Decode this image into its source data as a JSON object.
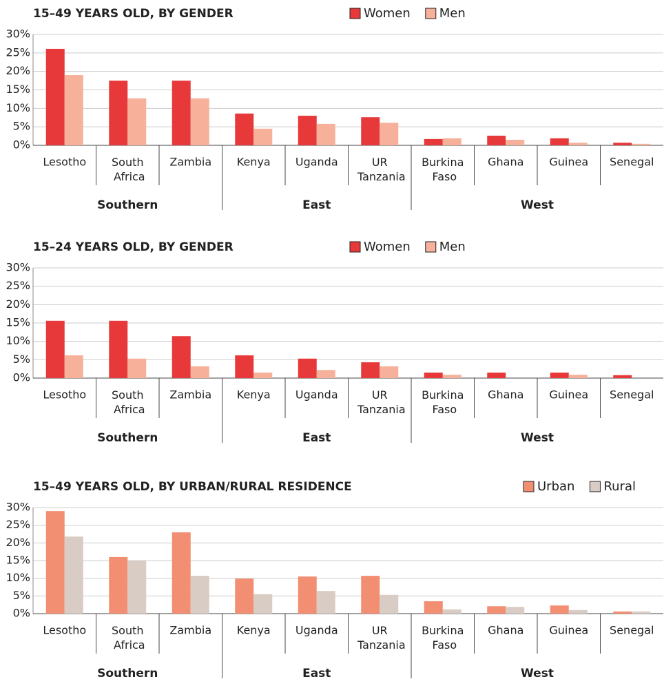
{
  "chart_data": [
    {
      "type": "bar",
      "title": "15–49 YEARS OLD, BY GENDER",
      "groups": [
        {
          "name": "Southern",
          "categories": [
            "Lesotho",
            "South Africa",
            "Zambia"
          ]
        },
        {
          "name": "East",
          "categories": [
            "Kenya",
            "Uganda",
            "UR Tanzania"
          ]
        },
        {
          "name": "West",
          "categories": [
            "Burkina Faso",
            "Ghana",
            "Guinea",
            "Senegal"
          ]
        }
      ],
      "series": [
        {
          "name": "Women",
          "color": "#e8393a",
          "values": [
            26.1,
            17.5,
            17.5,
            8.6,
            8.0,
            7.6,
            1.7,
            2.6,
            1.9,
            0.7
          ]
        },
        {
          "name": "Men",
          "color": "#f7b09a",
          "values": [
            19.0,
            12.7,
            12.7,
            4.5,
            5.8,
            6.1,
            1.9,
            1.5,
            0.7,
            0.4
          ]
        }
      ],
      "ylim": [
        0,
        30
      ],
      "yticks": [
        {
          "value": 0,
          "label": "0%"
        },
        {
          "value": 5,
          "label": "5%"
        },
        {
          "value": 10,
          "label": "10%"
        },
        {
          "value": 15,
          "label": "15%"
        },
        {
          "value": 20,
          "label": "20%"
        },
        {
          "value": 25,
          "label": "25%"
        },
        {
          "value": 30,
          "label": "30%"
        }
      ],
      "grid": true
    },
    {
      "type": "bar",
      "title": "15–24 YEARS OLD, BY GENDER",
      "groups": [
        {
          "name": "Southern",
          "categories": [
            "Lesotho",
            "South Africa",
            "Zambia"
          ]
        },
        {
          "name": "East",
          "categories": [
            "Kenya",
            "Uganda",
            "UR Tanzania"
          ]
        },
        {
          "name": "West",
          "categories": [
            "Burkina Faso",
            "Ghana",
            "Guinea",
            "Senegal"
          ]
        }
      ],
      "series": [
        {
          "name": "Women",
          "color": "#e8393a",
          "values": [
            15.6,
            15.6,
            11.4,
            6.2,
            5.3,
            4.3,
            1.5,
            1.5,
            1.5,
            0.8
          ]
        },
        {
          "name": "Men",
          "color": "#f7b09a",
          "values": [
            6.2,
            5.3,
            3.2,
            1.5,
            2.2,
            3.2,
            0.9,
            0,
            0.9,
            0
          ]
        }
      ],
      "ylim": [
        0,
        30
      ],
      "yticks": [
        {
          "value": 0,
          "label": "0%"
        },
        {
          "value": 5,
          "label": "5%"
        },
        {
          "value": 10,
          "label": "10%"
        },
        {
          "value": 15,
          "label": "15%"
        },
        {
          "value": 20,
          "label": "20%"
        },
        {
          "value": 25,
          "label": "25%"
        },
        {
          "value": 30,
          "label": "30%"
        }
      ],
      "grid": true
    },
    {
      "type": "bar",
      "title": "15–49 YEARS OLD, BY URBAN/RURAL RESIDENCE",
      "groups": [
        {
          "name": "Southern",
          "categories": [
            "Lesotho",
            "South Africa",
            "Zambia"
          ]
        },
        {
          "name": "East",
          "categories": [
            "Kenya",
            "Uganda",
            "UR Tanzania"
          ]
        },
        {
          "name": "West",
          "categories": [
            "Burkina Faso",
            "Ghana",
            "Guinea",
            "Senegal"
          ]
        }
      ],
      "series": [
        {
          "name": "Urban",
          "color": "#f28f73",
          "values": [
            29.0,
            16.0,
            23.0,
            9.9,
            10.5,
            10.7,
            3.5,
            2.1,
            2.3,
            0.6
          ]
        },
        {
          "name": "Rural",
          "color": "#d9ccc4",
          "values": [
            21.8,
            15.0,
            10.7,
            5.5,
            6.4,
            5.3,
            1.2,
            1.9,
            1.0,
            0.6
          ]
        }
      ],
      "ylim": [
        0,
        30
      ],
      "yticks": [
        {
          "value": 0,
          "label": "0%"
        },
        {
          "value": 5,
          "label": "5%"
        },
        {
          "value": 10,
          "label": "10%"
        },
        {
          "value": 15,
          "label": "15%"
        },
        {
          "value": 20,
          "label": "20%"
        },
        {
          "value": 25,
          "label": "25%"
        },
        {
          "value": 30,
          "label": "30%"
        }
      ],
      "grid": true
    }
  ]
}
